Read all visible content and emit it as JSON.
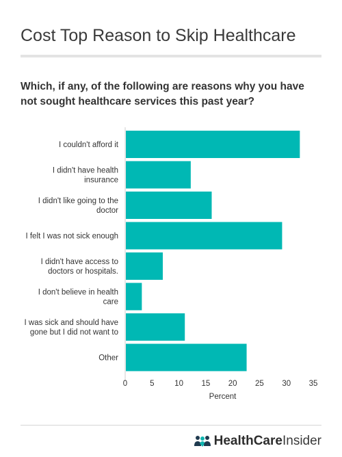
{
  "title": "Cost Top Reason to Skip Healthcare",
  "brand": {
    "part1": "HealthCare",
    "part2": "Insider",
    "icon": "people-icon",
    "icon_colors": [
      "#1f3a4f",
      "#10b5b0"
    ]
  },
  "colors": {
    "bar": "#00b8b4",
    "axis": "#cfcfcf"
  },
  "chart_data": {
    "type": "bar",
    "orientation": "horizontal",
    "title": "Which, if any, of the following are reasons why you have not sought healthcare services this past year?",
    "xlabel": "Percent",
    "ylabel": "",
    "xlim": [
      0,
      35
    ],
    "xticks": [
      0,
      5,
      10,
      15,
      20,
      25,
      30,
      35
    ],
    "grid": false,
    "categories": [
      [
        "I couldn't afford it"
      ],
      [
        "I didn't have health",
        "insurance"
      ],
      [
        "I didn't like going to the",
        "doctor"
      ],
      [
        "I felt I was not sick enough"
      ],
      [
        "I didn't have access to",
        "doctors or hospitals."
      ],
      [
        "I don't believe in health",
        "care"
      ],
      [
        "I was sick and should have",
        "gone but I did not want to"
      ],
      [
        "Other"
      ]
    ],
    "values": [
      32.5,
      12.2,
      16.1,
      29.2,
      7.0,
      3.1,
      11.1,
      22.6
    ]
  }
}
